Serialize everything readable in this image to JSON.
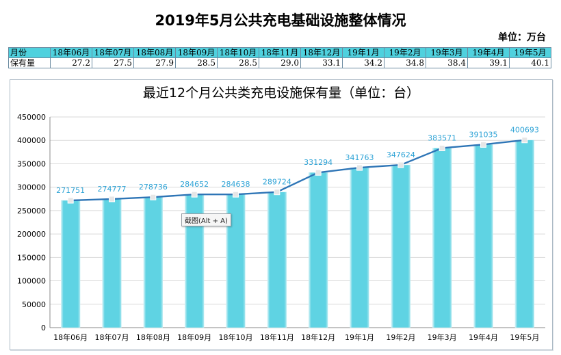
{
  "header": {
    "title": "2019年5月公共充电基础设施整体情况",
    "unit": "单位：万台"
  },
  "summary_table": {
    "row_label_month": "月份",
    "row_label_stock": "保有量",
    "months": [
      "18年06月",
      "18年07月",
      "18年08月",
      "18年09月",
      "18年10月",
      "18年11月",
      "18年12月",
      "19年1月",
      "19年2月",
      "19年3月",
      "19年4月",
      "19年5月"
    ],
    "values": [
      "27.2",
      "27.5",
      "27.9",
      "28.5",
      "28.5",
      "29.0",
      "33.1",
      "34.2",
      "34.8",
      "38.4",
      "39.1",
      "40.1"
    ]
  },
  "tooltip": "截图(Alt + A)",
  "colors": {
    "bar": "#5fd3e3",
    "line": "#2e75b6",
    "label": "#2ea3d6",
    "header_bg": "#4fd1de"
  },
  "chart_data": {
    "type": "bar",
    "title": "最近12个月公共类充电设施保有量（单位：台）",
    "xlabel": "",
    "ylabel": "",
    "categories": [
      "18年06月",
      "18年07月",
      "18年08月",
      "18年09月",
      "18年10月",
      "18年11月",
      "18年12月",
      "19年1月",
      "19年2月",
      "19年3月",
      "19年4月",
      "19年5月"
    ],
    "values": [
      271751,
      274777,
      278736,
      284652,
      284638,
      289724,
      331294,
      341763,
      347624,
      383571,
      391035,
      400693
    ],
    "line_overlay": true,
    "ylim": [
      0,
      450000
    ],
    "yticks": [
      "0",
      "50000",
      "100000",
      "150000",
      "200000",
      "250000",
      "300000",
      "350000",
      "400000",
      "450000"
    ],
    "grid": true,
    "legend": "none"
  }
}
